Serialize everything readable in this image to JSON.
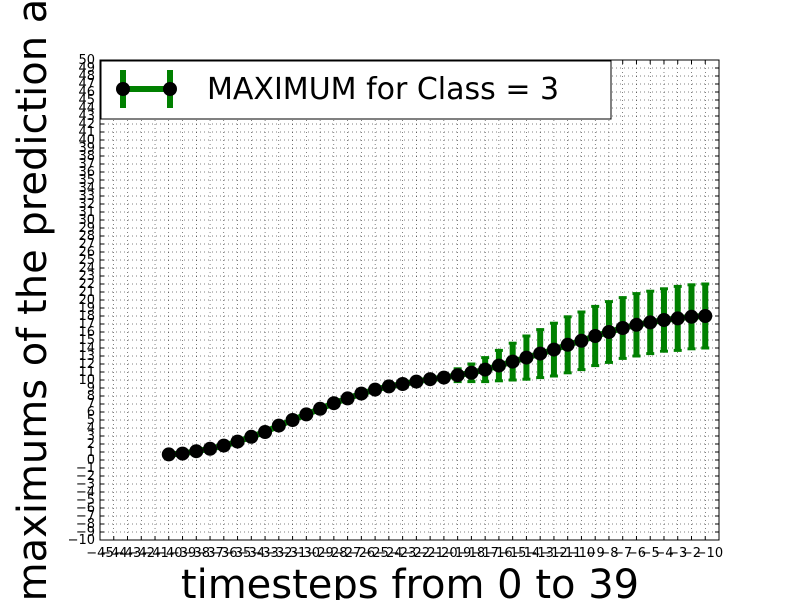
{
  "chart_data": {
    "type": "line",
    "xlabel": "timesteps from 0 to 39",
    "ylabel": "maximums of the prediction a",
    "xlim": [
      -45,
      0
    ],
    "ylim": [
      -10,
      50
    ],
    "x_ticks": [
      -45,
      -44,
      -43,
      -42,
      -41,
      -40,
      -39,
      -38,
      -37,
      -36,
      -35,
      -34,
      -33,
      -32,
      -31,
      -30,
      -29,
      -28,
      -27,
      -26,
      -25,
      -24,
      -23,
      -22,
      -21,
      -20,
      -19,
      -18,
      -17,
      -16,
      -15,
      -14,
      -13,
      -12,
      -11,
      -10,
      -9,
      -8,
      -7,
      -6,
      -5,
      -4,
      -3,
      -2,
      -1,
      0
    ],
    "y_ticks": [
      -10,
      -9,
      -8,
      -7,
      -6,
      -5,
      -4,
      -3,
      -2,
      -1,
      0,
      1,
      2,
      3,
      4,
      5,
      6,
      7,
      8,
      9,
      10,
      11,
      12,
      13,
      14,
      15,
      16,
      17,
      18,
      19,
      20,
      21,
      22,
      23,
      24,
      25,
      26,
      27,
      28,
      29,
      30,
      31,
      32,
      33,
      34,
      35,
      36,
      37,
      38,
      39,
      40,
      41,
      42,
      43,
      44,
      45,
      46,
      47,
      48,
      49,
      50
    ],
    "grid": true,
    "grid_style": "dotted",
    "legend_position": "top-left",
    "series": [
      {
        "name": "MAXIMUM for Class = 3",
        "color": "#008000",
        "marker_color": "#000000",
        "x": [
          -40,
          -39,
          -38,
          -37,
          -36,
          -35,
          -34,
          -33,
          -32,
          -31,
          -30,
          -29,
          -28,
          -27,
          -26,
          -25,
          -24,
          -23,
          -22,
          -21,
          -20,
          -19,
          -18,
          -17,
          -16,
          -15,
          -14,
          -13,
          -12,
          -11,
          -10,
          -9,
          -8,
          -7,
          -6,
          -5,
          -4,
          -3,
          -2,
          -1
        ],
        "y": [
          0.7,
          0.8,
          1.1,
          1.4,
          1.8,
          2.3,
          2.9,
          3.5,
          4.3,
          5.0,
          5.7,
          6.4,
          7.1,
          7.7,
          8.3,
          8.8,
          9.2,
          9.5,
          9.8,
          10.1,
          10.3,
          10.6,
          10.9,
          11.3,
          11.8,
          12.3,
          12.8,
          13.3,
          13.8,
          14.4,
          14.9,
          15.5,
          16.0,
          16.5,
          16.9,
          17.2,
          17.5,
          17.7,
          17.9,
          18.0
        ],
        "yerr": [
          0,
          0,
          0,
          0,
          0,
          0,
          0,
          0,
          0,
          0,
          0,
          0,
          0,
          0,
          0,
          0,
          0,
          0,
          0.1,
          0.3,
          0.5,
          0.8,
          1.1,
          1.5,
          1.9,
          2.3,
          2.7,
          3.0,
          3.3,
          3.5,
          3.6,
          3.7,
          3.8,
          3.8,
          3.9,
          3.9,
          3.9,
          4.0,
          4.0,
          4.0
        ]
      }
    ]
  }
}
